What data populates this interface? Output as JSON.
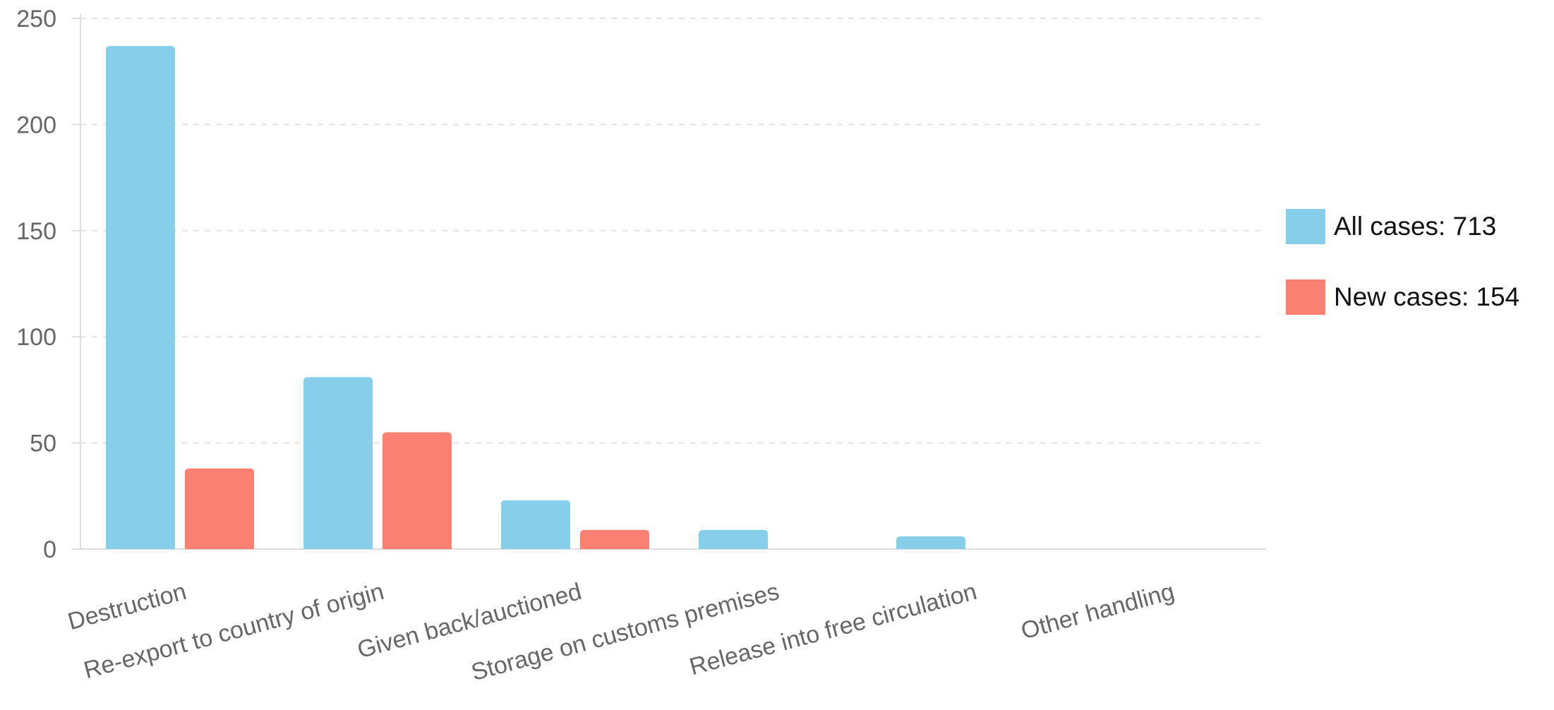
{
  "chart_data": {
    "type": "bar",
    "title": "",
    "xlabel": "",
    "ylabel": "",
    "ylim": [
      0,
      250
    ],
    "yticks": [
      0,
      50,
      100,
      150,
      200,
      250
    ],
    "grid": true,
    "legend_position": "right",
    "categories": [
      "Destruction",
      "Re-export to country of origin",
      "Given back/auctioned",
      "Storage on customs premises",
      "Release into free circulation",
      "Other handling"
    ],
    "series": [
      {
        "name": "All cases: 713",
        "color": "#87ceeb",
        "values": [
          237,
          81,
          23,
          9,
          6,
          0
        ]
      },
      {
        "name": "New cases: 154",
        "color": "#fa8072",
        "values": [
          38,
          55,
          9,
          0,
          0,
          0
        ]
      }
    ]
  }
}
